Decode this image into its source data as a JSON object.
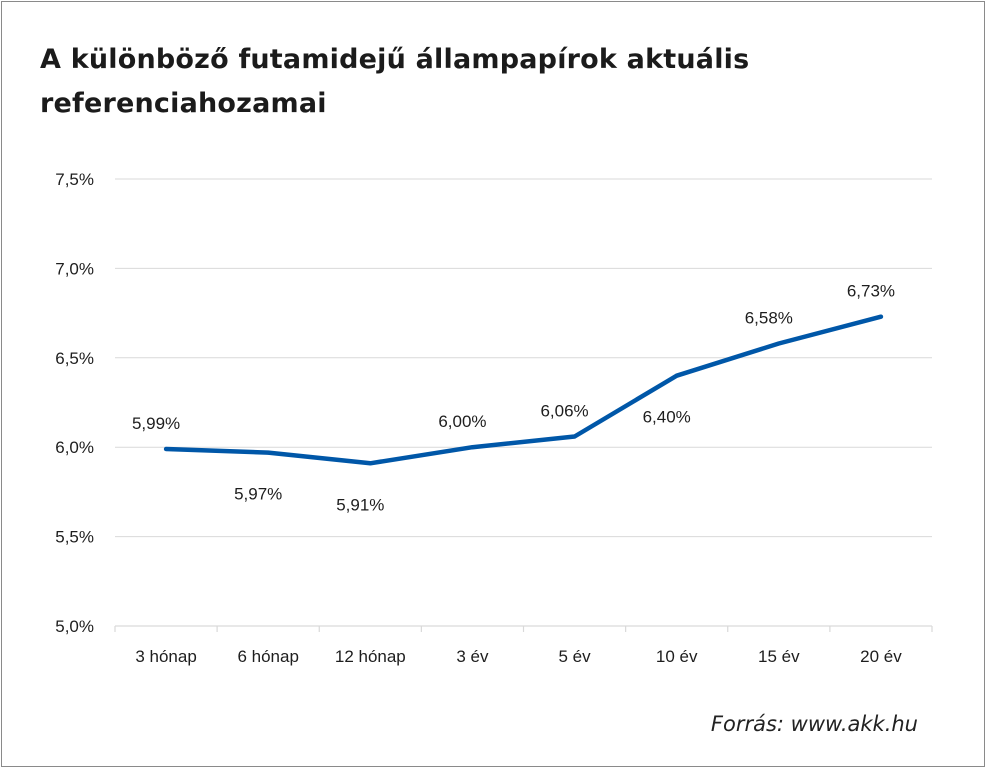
{
  "source_text": "Forrás: www.akk.hu",
  "chart_data": {
    "type": "line",
    "title": "A különböző futamidejű állampapírok aktuális referenciahozamai",
    "xlabel": "",
    "ylabel": "",
    "categories": [
      "3 hónap",
      "6 hónap",
      "12 hónap",
      "3 év",
      "5 év",
      "10 év",
      "15 év",
      "20 év"
    ],
    "series": [
      {
        "values": [
          5.99,
          5.97,
          5.91,
          6.0,
          6.06,
          6.4,
          6.58,
          6.73
        ],
        "labels": [
          "5,99%",
          "5,97%",
          "5,91%",
          "6,00%",
          "6,06%",
          "6,40%",
          "6,58%",
          "6,73%"
        ],
        "label_positions": [
          "above",
          "below",
          "below",
          "above",
          "above",
          "below",
          "above",
          "above"
        ],
        "color": "#0057a8"
      }
    ],
    "ylim": [
      5.0,
      7.5
    ],
    "yticks": [
      5.0,
      5.5,
      6.0,
      6.5,
      7.0,
      7.5
    ],
    "ytick_labels": [
      "5,0%",
      "5,5%",
      "6,0%",
      "6,5%",
      "7,0%",
      "7,5%"
    ],
    "grid": true,
    "legend": "none"
  }
}
